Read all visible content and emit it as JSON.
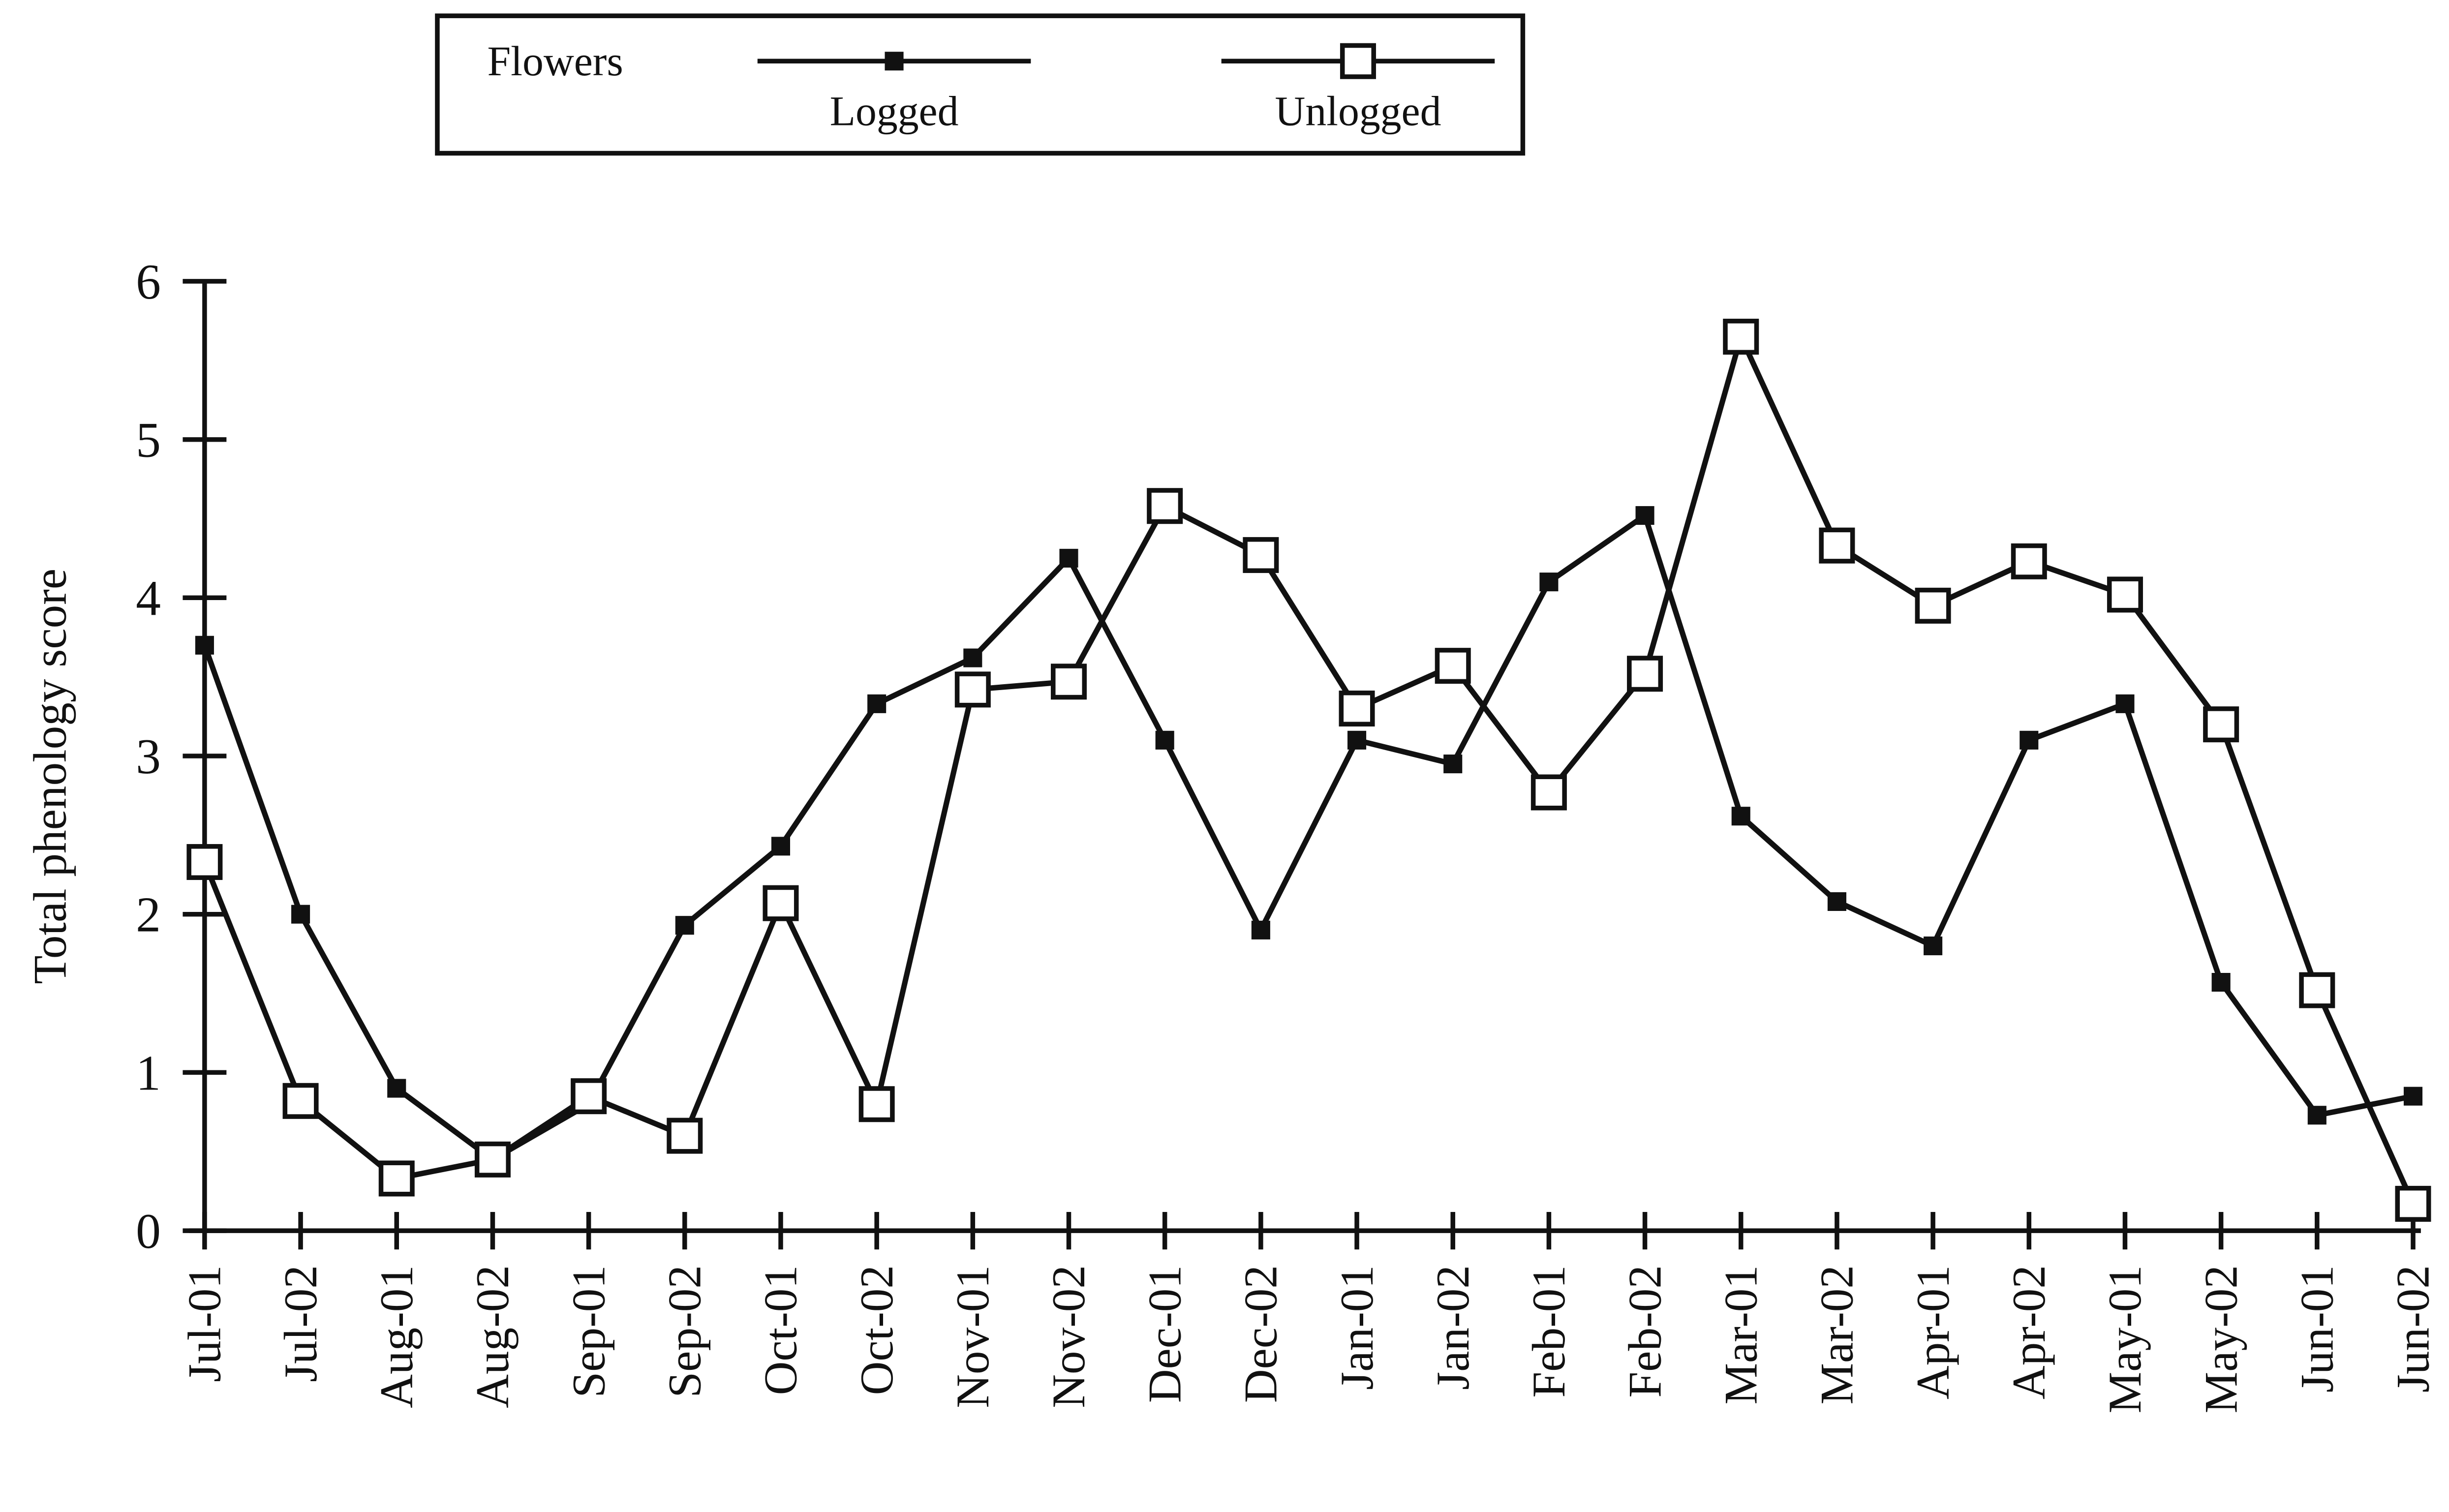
{
  "chart_data": {
    "type": "line",
    "legend_title": "Flowers",
    "y_label": "Total phenology score",
    "categories": [
      "Jul-01",
      "Jul-02",
      "Aug-01",
      "Aug-02",
      "Sep-01",
      "Sep-02",
      "Oct-01",
      "Oct-02",
      "Nov-01",
      "Nov-02",
      "Dec-01",
      "Dec-02",
      "Jan-01",
      "Jan-02",
      "Feb-01",
      "Feb-02",
      "Mar-01",
      "Mar-02",
      "Apr-01",
      "Apr-02",
      "May-01",
      "May-02",
      "Jun-01",
      "Jun-02"
    ],
    "series": [
      {
        "name": "Logged",
        "color": "#111111",
        "marker": "filled-square",
        "values": [
          3.7,
          2.0,
          0.9,
          0.45,
          0.8,
          1.93,
          2.43,
          3.33,
          3.62,
          4.25,
          3.1,
          1.9,
          3.1,
          2.95,
          4.1,
          4.52,
          2.62,
          2.08,
          1.8,
          3.1,
          3.33,
          1.57,
          0.73,
          0.85
        ]
      },
      {
        "name": "Unlogged",
        "color": "#111111",
        "marker": "open-square",
        "values": [
          2.33,
          0.82,
          0.33,
          0.45,
          0.85,
          0.6,
          2.07,
          0.8,
          3.42,
          3.47,
          4.58,
          4.27,
          3.3,
          3.57,
          2.77,
          3.52,
          5.65,
          4.33,
          3.95,
          4.23,
          4.02,
          3.2,
          1.52,
          0.17
        ]
      }
    ],
    "ylim": [
      0,
      6
    ],
    "yticks": [
      0,
      1,
      2,
      3,
      4,
      5,
      6
    ],
    "grid": false,
    "legend_position": "top"
  }
}
